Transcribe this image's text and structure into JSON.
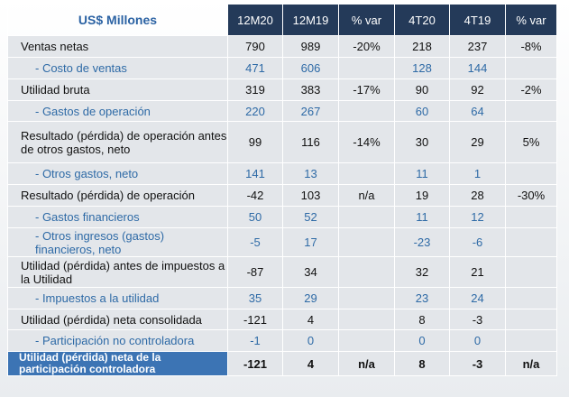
{
  "header": {
    "title": "US$ Millones"
  },
  "table": {
    "columns": [
      "12M20",
      "12M19",
      "% var",
      "4T20",
      "4T19",
      "% var"
    ],
    "rows": [
      {
        "label": "Ventas netas",
        "values": [
          "790",
          "989",
          "-20%",
          "218",
          "237",
          "-8%"
        ]
      },
      {
        "label": "- Costo de ventas",
        "sub": true,
        "values": [
          "471",
          "606",
          null,
          "128",
          "144",
          null
        ]
      },
      {
        "label": "Utilidad bruta",
        "values": [
          "319",
          "383",
          "-17%",
          "90",
          "92",
          "-2%"
        ]
      },
      {
        "label": "- Gastos de operación",
        "sub": true,
        "values": [
          "220",
          "267",
          null,
          "60",
          "64",
          null
        ]
      },
      {
        "label": "Resultado (pérdida) de operación antes de otros gastos, neto",
        "values": [
          "99",
          "116",
          "-14%",
          "30",
          "29",
          "5%"
        ]
      },
      {
        "label": "- Otros gastos, neto",
        "sub": true,
        "values": [
          "141",
          "13",
          null,
          "11",
          "1",
          null
        ]
      },
      {
        "label": "Resultado (pérdida) de operación",
        "values": [
          "-42",
          "103",
          "n/a",
          "19",
          "28",
          "-30%"
        ]
      },
      {
        "label": "- Gastos financieros",
        "sub": true,
        "values": [
          "50",
          "52",
          null,
          "11",
          "12",
          null
        ]
      },
      {
        "label": "- Otros ingresos (gastos) financieros, neto",
        "sub": true,
        "values": [
          "-5",
          "17",
          null,
          "-23",
          "-6",
          null
        ]
      },
      {
        "label": "Utilidad (pérdida) antes de impuestos a la Utilidad",
        "values": [
          "-87",
          "34",
          null,
          "32",
          "21",
          null
        ]
      },
      {
        "label": "- Impuestos a la utilidad",
        "sub": true,
        "values": [
          "35",
          "29",
          null,
          "23",
          "24",
          null
        ]
      },
      {
        "label": "Utilidad (pérdida) neta consolidada",
        "values": [
          "-121",
          "4",
          null,
          "8",
          "-3",
          null
        ]
      },
      {
        "label": "- Participación no controladora",
        "sub": true,
        "values": [
          "-1",
          "0",
          null,
          "0",
          "0",
          null
        ]
      },
      {
        "label": "Utilidad (pérdida) neta de la participación controladora",
        "total": true,
        "values": [
          "-121",
          "4",
          "n/a",
          "8",
          "-3",
          "n/a"
        ]
      }
    ]
  }
}
